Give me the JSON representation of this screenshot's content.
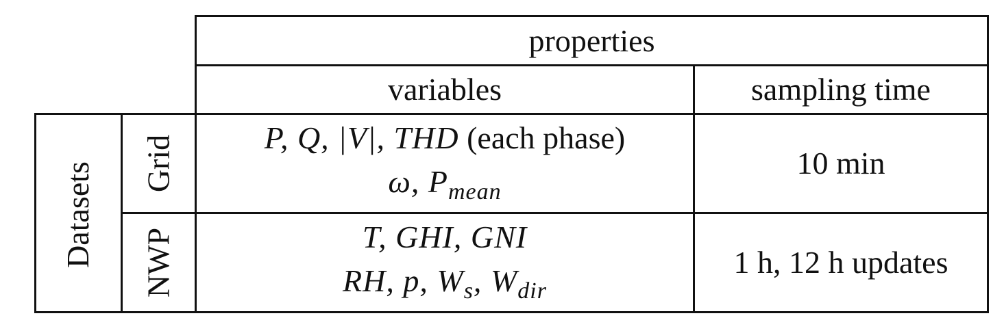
{
  "table": {
    "header_properties": "properties",
    "header_variables": "variables",
    "header_sampling_time": "sampling time",
    "row_group_label": "Datasets",
    "rows": [
      {
        "label": "Grid",
        "variables_line1_math": "P, Q, |V|, THD",
        "variables_line1_text": " (each phase)",
        "variables_line2": "ω, P",
        "variables_line2_sub": "mean",
        "sampling_time": "10 min"
      },
      {
        "label": "NWP",
        "variables_line1": "T, GHI, GNI",
        "variables_line2_a": "RH, p, W",
        "variables_line2_sub_a": "s",
        "variables_line2_b": ", W",
        "variables_line2_sub_b": "dir",
        "sampling_time": "1 h, 12 h updates"
      }
    ]
  }
}
